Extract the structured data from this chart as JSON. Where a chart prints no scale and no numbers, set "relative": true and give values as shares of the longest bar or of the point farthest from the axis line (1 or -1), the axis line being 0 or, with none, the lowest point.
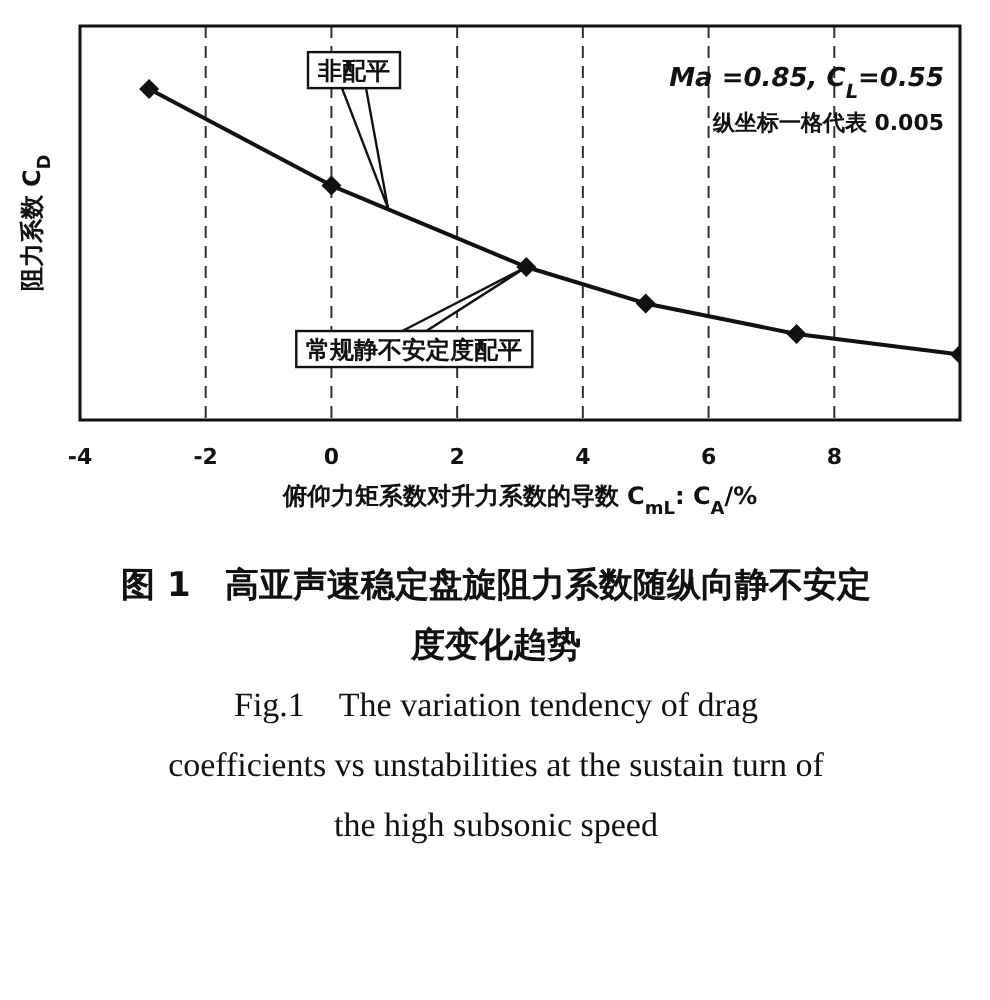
{
  "chart_data": {
    "type": "line",
    "title": "图 1　高亚声速稳定盘旋阻力系数随纵向静不安定度变化趋势",
    "subtitle": "Fig.1　The variation tendency of drag coefficients vs unstabilities at the sustain turn of the high subsonic speed",
    "xlabel": "俯仰力矩系数对升力系数的导数 C$_{mL}$: C$_{A}$/%",
    "ylabel": "阻力系数 C$_{D}$",
    "relative": true,
    "x": [
      -2.9,
      0,
      3.1,
      5.0,
      7.4,
      10
    ],
    "series": [
      {
        "color": "#111111",
        "values": [
          1,
          0.708,
          0.462,
          0.352,
          0.26,
          0.198
        ]
      }
    ],
    "xlim": [
      -4,
      10
    ],
    "xticks": [
      -4,
      -2,
      0,
      2,
      4,
      6,
      8
    ],
    "grid": true,
    "marker": "diamond",
    "line_style": "solid",
    "annotations": [
      {
        "text": "非配平",
        "x": 0.9,
        "y": 0.64
      },
      {
        "text": "常规静不安定度配平",
        "x": 3.1,
        "y": 0.462
      },
      "Ma =0.85, C$_{L}$=0.55",
      "纵坐标一格代表 0.005"
    ]
  }
}
